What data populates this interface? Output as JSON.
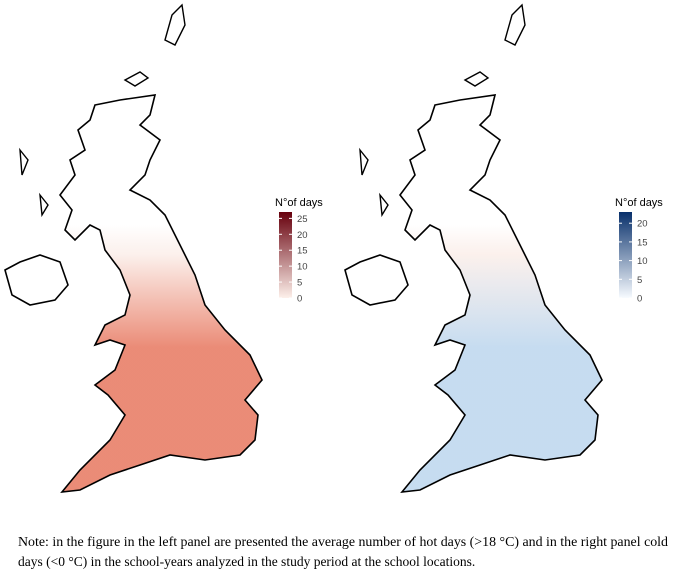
{
  "panels": [
    {
      "legend_title": "N°of days",
      "lim": [
        0,
        27
      ],
      "ticks": [
        0,
        5,
        10,
        15,
        20,
        25
      ],
      "colors": [
        "#fdf0ea",
        "#67000d"
      ],
      "map_color": "#e7775f"
    },
    {
      "legend_title": "N°of days",
      "lim": [
        0,
        23
      ],
      "ticks": [
        0,
        5,
        10,
        15,
        20
      ],
      "colors": [
        "#f7fbff",
        "#08306b"
      ],
      "map_color": "#bcd6ee"
    }
  ],
  "note": {
    "lines": [
      "Note: in the figure in the left panel are presented the average number of hot days (>18 °C) and in the right panel cold",
      "days (<0 °C) in the school-years analyzed in the study period at the school locations."
    ]
  }
}
